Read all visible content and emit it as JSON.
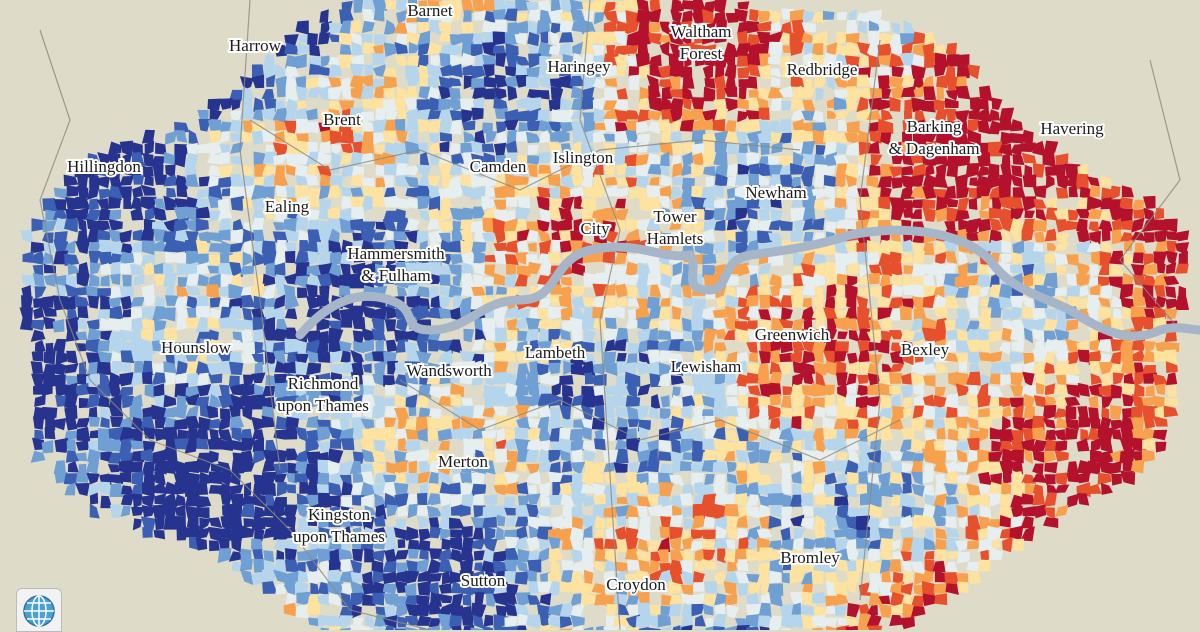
{
  "labels": [
    {
      "lines": [
        "Barnet"
      ]
    },
    {
      "lines": [
        "Harrow"
      ]
    },
    {
      "lines": [
        "Haringey"
      ]
    },
    {
      "lines": [
        "Waltham",
        "Forest"
      ]
    },
    {
      "lines": [
        "Redbridge"
      ]
    },
    {
      "lines": [
        "Brent"
      ]
    },
    {
      "lines": [
        "Barking",
        "& Dagenham"
      ]
    },
    {
      "lines": [
        "Havering"
      ]
    },
    {
      "lines": [
        "Hillingdon"
      ]
    },
    {
      "lines": [
        "Camden"
      ]
    },
    {
      "lines": [
        "Islington"
      ]
    },
    {
      "lines": [
        "Newham"
      ]
    },
    {
      "lines": [
        "Ealing"
      ]
    },
    {
      "lines": [
        "City"
      ]
    },
    {
      "lines": [
        "Tower",
        "Hamlets"
      ]
    },
    {
      "lines": [
        "Hammersmith",
        "& Fulham"
      ]
    },
    {
      "lines": [
        "Greenwich"
      ]
    },
    {
      "lines": [
        "Hounslow"
      ]
    },
    {
      "lines": [
        "Lambeth"
      ]
    },
    {
      "lines": [
        "Bexley"
      ]
    },
    {
      "lines": [
        "Wandsworth"
      ]
    },
    {
      "lines": [
        "Lewisham"
      ]
    },
    {
      "lines": [
        "Richmond",
        "upon Thames"
      ]
    },
    {
      "lines": [
        "Merton"
      ]
    },
    {
      "lines": [
        "Kingston",
        "upon Thames"
      ]
    },
    {
      "lines": [
        "Bromley"
      ]
    },
    {
      "lines": [
        "Sutton"
      ]
    },
    {
      "lines": [
        "Croydon"
      ]
    }
  ]
}
